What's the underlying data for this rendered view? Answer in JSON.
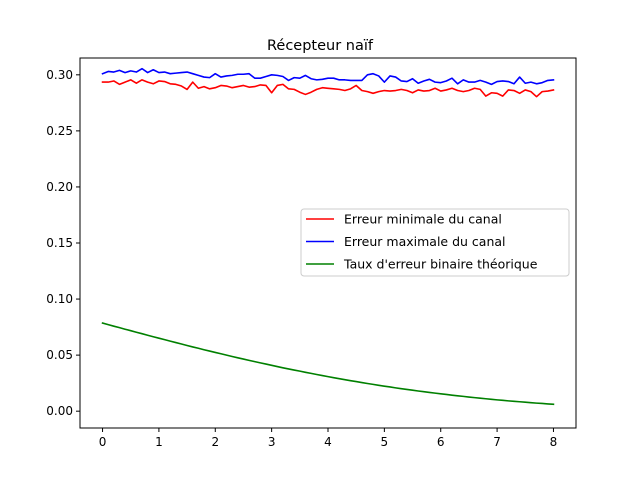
{
  "chart_data": {
    "type": "line",
    "title": "Récepteur naïf",
    "xlabel": "",
    "ylabel": "",
    "xlim": [
      -0.4,
      8.4
    ],
    "ylim": [
      -0.015,
      0.315
    ],
    "xticks": [
      0,
      1,
      2,
      3,
      4,
      5,
      6,
      7,
      8
    ],
    "xtick_labels": [
      "0",
      "1",
      "2",
      "3",
      "4",
      "5",
      "6",
      "7",
      "8"
    ],
    "yticks": [
      0.0,
      0.05,
      0.1,
      0.15,
      0.2,
      0.25,
      0.3
    ],
    "ytick_labels": [
      "0.00",
      "0.05",
      "0.10",
      "0.15",
      "0.20",
      "0.25",
      "0.30"
    ],
    "grid": false,
    "legend_position": "center-right",
    "x": [
      0,
      0.1,
      0.2,
      0.3,
      0.4,
      0.5,
      0.6,
      0.7,
      0.8,
      0.9,
      1.0,
      1.1,
      1.2,
      1.3,
      1.4,
      1.5,
      1.6,
      1.7,
      1.8,
      1.9,
      2.0,
      2.1,
      2.2,
      2.3,
      2.4,
      2.5,
      2.6,
      2.7,
      2.8,
      2.9,
      3.0,
      3.1,
      3.2,
      3.3,
      3.4,
      3.5,
      3.6,
      3.7,
      3.8,
      3.9,
      4.0,
      4.1,
      4.2,
      4.3,
      4.4,
      4.5,
      4.6,
      4.7,
      4.8,
      4.9,
      5.0,
      5.1,
      5.2,
      5.3,
      5.4,
      5.5,
      5.6,
      5.7,
      5.8,
      5.9,
      6.0,
      6.1,
      6.2,
      6.3,
      6.4,
      6.5,
      6.6,
      6.7,
      6.8,
      6.9,
      7.0,
      7.1,
      7.2,
      7.3,
      7.4,
      7.5,
      7.6,
      7.7,
      7.8,
      7.9,
      8.0
    ],
    "series": [
      {
        "name": "Erreur minimale du canal",
        "color": "#ff0000",
        "values": [
          0.2935,
          0.2935,
          0.2945,
          0.2915,
          0.2935,
          0.2955,
          0.2925,
          0.2955,
          0.2935,
          0.292,
          0.2945,
          0.294,
          0.292,
          0.2915,
          0.29,
          0.287,
          0.2935,
          0.288,
          0.2895,
          0.2875,
          0.2885,
          0.2905,
          0.29,
          0.2885,
          0.2895,
          0.2905,
          0.289,
          0.2895,
          0.291,
          0.2905,
          0.284,
          0.2905,
          0.2915,
          0.2875,
          0.287,
          0.2845,
          0.2825,
          0.2845,
          0.287,
          0.2885,
          0.288,
          0.2875,
          0.287,
          0.286,
          0.2875,
          0.2905,
          0.286,
          0.285,
          0.2835,
          0.285,
          0.286,
          0.2855,
          0.286,
          0.287,
          0.286,
          0.284,
          0.2865,
          0.2855,
          0.286,
          0.288,
          0.2855,
          0.2865,
          0.288,
          0.286,
          0.285,
          0.286,
          0.288,
          0.287,
          0.281,
          0.284,
          0.2835,
          0.281,
          0.2865,
          0.286,
          0.2835,
          0.2865,
          0.285,
          0.2805,
          0.285,
          0.2855,
          0.2865
        ]
      },
      {
        "name": "Erreur maximale du canal",
        "color": "#0000ff",
        "values": [
          0.301,
          0.303,
          0.3025,
          0.304,
          0.302,
          0.3035,
          0.3025,
          0.3055,
          0.302,
          0.3045,
          0.302,
          0.3025,
          0.301,
          0.3015,
          0.302,
          0.3025,
          0.301,
          0.2995,
          0.298,
          0.2975,
          0.301,
          0.298,
          0.299,
          0.2995,
          0.3005,
          0.3005,
          0.301,
          0.297,
          0.297,
          0.2985,
          0.3,
          0.2995,
          0.2985,
          0.295,
          0.2975,
          0.297,
          0.2995,
          0.2965,
          0.2955,
          0.296,
          0.297,
          0.297,
          0.2955,
          0.2955,
          0.295,
          0.295,
          0.295,
          0.3,
          0.301,
          0.299,
          0.2935,
          0.299,
          0.298,
          0.2945,
          0.294,
          0.2965,
          0.2925,
          0.2945,
          0.296,
          0.2935,
          0.293,
          0.2945,
          0.297,
          0.292,
          0.2955,
          0.2935,
          0.2935,
          0.295,
          0.2935,
          0.2915,
          0.294,
          0.2945,
          0.294,
          0.292,
          0.298,
          0.2925,
          0.2935,
          0.292,
          0.293,
          0.295,
          0.2955
        ]
      },
      {
        "name": "Taux d'erreur binaire théorique",
        "color": "#008000",
        "values": [
          0.0786,
          0.0772,
          0.0758,
          0.0745,
          0.0731,
          0.0718,
          0.0704,
          0.0691,
          0.0677,
          0.0664,
          0.0651,
          0.0638,
          0.0625,
          0.0612,
          0.0599,
          0.0586,
          0.0573,
          0.0561,
          0.0548,
          0.0536,
          0.0524,
          0.0512,
          0.05,
          0.0488,
          0.0476,
          0.0465,
          0.0453,
          0.0442,
          0.0431,
          0.042,
          0.0409,
          0.0398,
          0.0387,
          0.0377,
          0.0367,
          0.0357,
          0.0347,
          0.0337,
          0.0327,
          0.0318,
          0.0308,
          0.0299,
          0.029,
          0.0281,
          0.0272,
          0.0264,
          0.0255,
          0.0247,
          0.0239,
          0.0231,
          0.0223,
          0.0216,
          0.0208,
          0.0201,
          0.0194,
          0.0187,
          0.018,
          0.0174,
          0.0167,
          0.0161,
          0.0155,
          0.0149,
          0.0143,
          0.0137,
          0.0132,
          0.0126,
          0.0121,
          0.0116,
          0.0111,
          0.0106,
          0.0101,
          0.0097,
          0.0092,
          0.0088,
          0.0084,
          0.008,
          0.0076,
          0.0072,
          0.0069,
          0.0065,
          0.0062
        ]
      }
    ]
  }
}
